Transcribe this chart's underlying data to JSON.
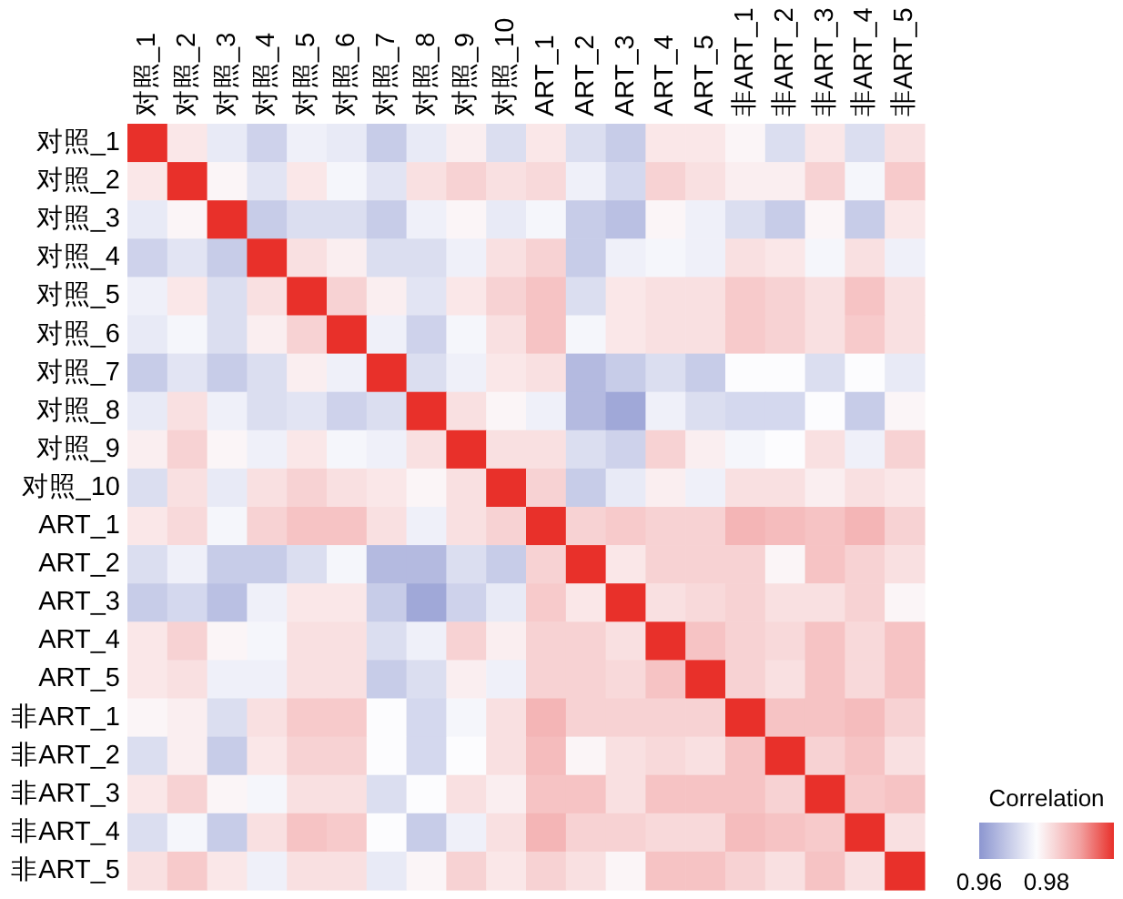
{
  "chart_data": {
    "type": "heatmap",
    "categories": [
      "对照_1",
      "对照_2",
      "对照_3",
      "对照_4",
      "对照_5",
      "对照_6",
      "对照_7",
      "对照_8",
      "对照_9",
      "对照_10",
      "ART_1",
      "ART_2",
      "ART_3",
      "ART_4",
      "ART_5",
      "非ART_1",
      "非ART_2",
      "非ART_3",
      "非ART_4",
      "非ART_5"
    ],
    "y_categories": [
      "对照_1",
      "对照_2",
      "对照_3",
      "对照_4",
      "对照_5",
      "对照_6",
      "对照_7",
      "对照_8",
      "对照_9",
      "对照_10",
      "ART_1",
      "ART_2",
      "ART_3",
      "ART_4",
      "ART_5",
      "非ART_1",
      "非ART_2",
      "非ART_3",
      "非ART_4",
      "非ART_5"
    ],
    "cells": [
      [
        1,
        0.98,
        0.974,
        0.97,
        0.975,
        0.974,
        0.969,
        0.974,
        0.979,
        0.972,
        0.98,
        0.972,
        0.969,
        0.98,
        0.98,
        0.978,
        0.972,
        0.98,
        0.972,
        0.981
      ],
      [
        0.98,
        1,
        0.978,
        0.973,
        0.98,
        0.976,
        0.973,
        0.981,
        0.983,
        0.981,
        0.982,
        0.975,
        0.971,
        0.983,
        0.981,
        0.979,
        0.979,
        0.983,
        0.976,
        0.984
      ],
      [
        0.974,
        0.978,
        1,
        0.969,
        0.972,
        0.972,
        0.969,
        0.975,
        0.978,
        0.974,
        0.976,
        0.969,
        0.967,
        0.978,
        0.975,
        0.972,
        0.969,
        0.978,
        0.969,
        0.98
      ],
      [
        0.97,
        0.973,
        0.969,
        1,
        0.981,
        0.979,
        0.972,
        0.972,
        0.975,
        0.981,
        0.983,
        0.969,
        0.975,
        0.976,
        0.975,
        0.981,
        0.98,
        0.976,
        0.981,
        0.975
      ],
      [
        0.975,
        0.98,
        0.972,
        0.981,
        1,
        0.983,
        0.979,
        0.973,
        0.98,
        0.983,
        0.985,
        0.972,
        0.98,
        0.981,
        0.981,
        0.984,
        0.983,
        0.981,
        0.985,
        0.981
      ],
      [
        0.974,
        0.976,
        0.972,
        0.979,
        0.983,
        1,
        0.975,
        0.97,
        0.976,
        0.981,
        0.985,
        0.976,
        0.98,
        0.981,
        0.981,
        0.984,
        0.983,
        0.981,
        0.984,
        0.981
      ],
      [
        0.969,
        0.973,
        0.969,
        0.972,
        0.979,
        0.975,
        1,
        0.972,
        0.975,
        0.98,
        0.981,
        0.966,
        0.969,
        0.972,
        0.969,
        0.977,
        0.977,
        0.972,
        0.977,
        0.974
      ],
      [
        0.974,
        0.981,
        0.975,
        0.972,
        0.973,
        0.97,
        0.972,
        1,
        0.981,
        0.978,
        0.975,
        0.966,
        0.963,
        0.975,
        0.972,
        0.971,
        0.971,
        0.977,
        0.969,
        0.978
      ],
      [
        0.979,
        0.983,
        0.978,
        0.975,
        0.98,
        0.976,
        0.975,
        0.981,
        1,
        0.981,
        0.981,
        0.972,
        0.97,
        0.983,
        0.979,
        0.976,
        0.977,
        0.981,
        0.975,
        0.983
      ],
      [
        0.972,
        0.981,
        0.974,
        0.981,
        0.983,
        0.981,
        0.98,
        0.978,
        0.981,
        1,
        0.983,
        0.969,
        0.974,
        0.979,
        0.975,
        0.981,
        0.981,
        0.979,
        0.981,
        0.98
      ],
      [
        0.98,
        0.982,
        0.976,
        0.983,
        0.985,
        0.985,
        0.981,
        0.975,
        0.981,
        0.983,
        1,
        0.983,
        0.984,
        0.983,
        0.983,
        0.987,
        0.986,
        0.985,
        0.987,
        0.983
      ],
      [
        0.972,
        0.975,
        0.969,
        0.969,
        0.972,
        0.976,
        0.966,
        0.966,
        0.972,
        0.969,
        0.983,
        1,
        0.98,
        0.983,
        0.983,
        0.983,
        0.978,
        0.985,
        0.983,
        0.981
      ],
      [
        0.969,
        0.971,
        0.967,
        0.975,
        0.98,
        0.98,
        0.969,
        0.963,
        0.97,
        0.974,
        0.984,
        0.98,
        1,
        0.981,
        0.982,
        0.983,
        0.981,
        0.981,
        0.983,
        0.978
      ],
      [
        0.98,
        0.983,
        0.978,
        0.976,
        0.981,
        0.981,
        0.972,
        0.975,
        0.983,
        0.979,
        0.983,
        0.983,
        0.981,
        1,
        0.985,
        0.983,
        0.982,
        0.985,
        0.982,
        0.985
      ],
      [
        0.98,
        0.981,
        0.975,
        0.975,
        0.981,
        0.981,
        0.969,
        0.972,
        0.979,
        0.975,
        0.983,
        0.983,
        0.982,
        0.985,
        1,
        0.983,
        0.981,
        0.985,
        0.982,
        0.985
      ],
      [
        0.978,
        0.979,
        0.972,
        0.981,
        0.984,
        0.984,
        0.977,
        0.971,
        0.976,
        0.981,
        0.987,
        0.983,
        0.983,
        0.983,
        0.983,
        1,
        0.985,
        0.985,
        0.986,
        0.983
      ],
      [
        0.972,
        0.979,
        0.969,
        0.98,
        0.983,
        0.983,
        0.977,
        0.971,
        0.977,
        0.981,
        0.986,
        0.978,
        0.981,
        0.982,
        0.981,
        0.985,
        1,
        0.983,
        0.985,
        0.981
      ],
      [
        0.98,
        0.983,
        0.978,
        0.976,
        0.981,
        0.981,
        0.972,
        0.977,
        0.981,
        0.979,
        0.985,
        0.985,
        0.981,
        0.985,
        0.985,
        0.985,
        0.983,
        1,
        0.984,
        0.985
      ],
      [
        0.972,
        0.976,
        0.969,
        0.981,
        0.985,
        0.984,
        0.977,
        0.969,
        0.975,
        0.981,
        0.987,
        0.983,
        0.983,
        0.982,
        0.982,
        0.986,
        0.985,
        0.984,
        1,
        0.981
      ],
      [
        0.981,
        0.984,
        0.98,
        0.975,
        0.981,
        0.981,
        0.974,
        0.978,
        0.983,
        0.98,
        0.983,
        0.981,
        0.978,
        0.985,
        0.985,
        0.983,
        0.981,
        0.985,
        0.981,
        1
      ]
    ],
    "clim": [
      0.96,
      1.0
    ],
    "cticks": [
      0.96,
      0.98
    ],
    "clabel": "Correlation"
  }
}
